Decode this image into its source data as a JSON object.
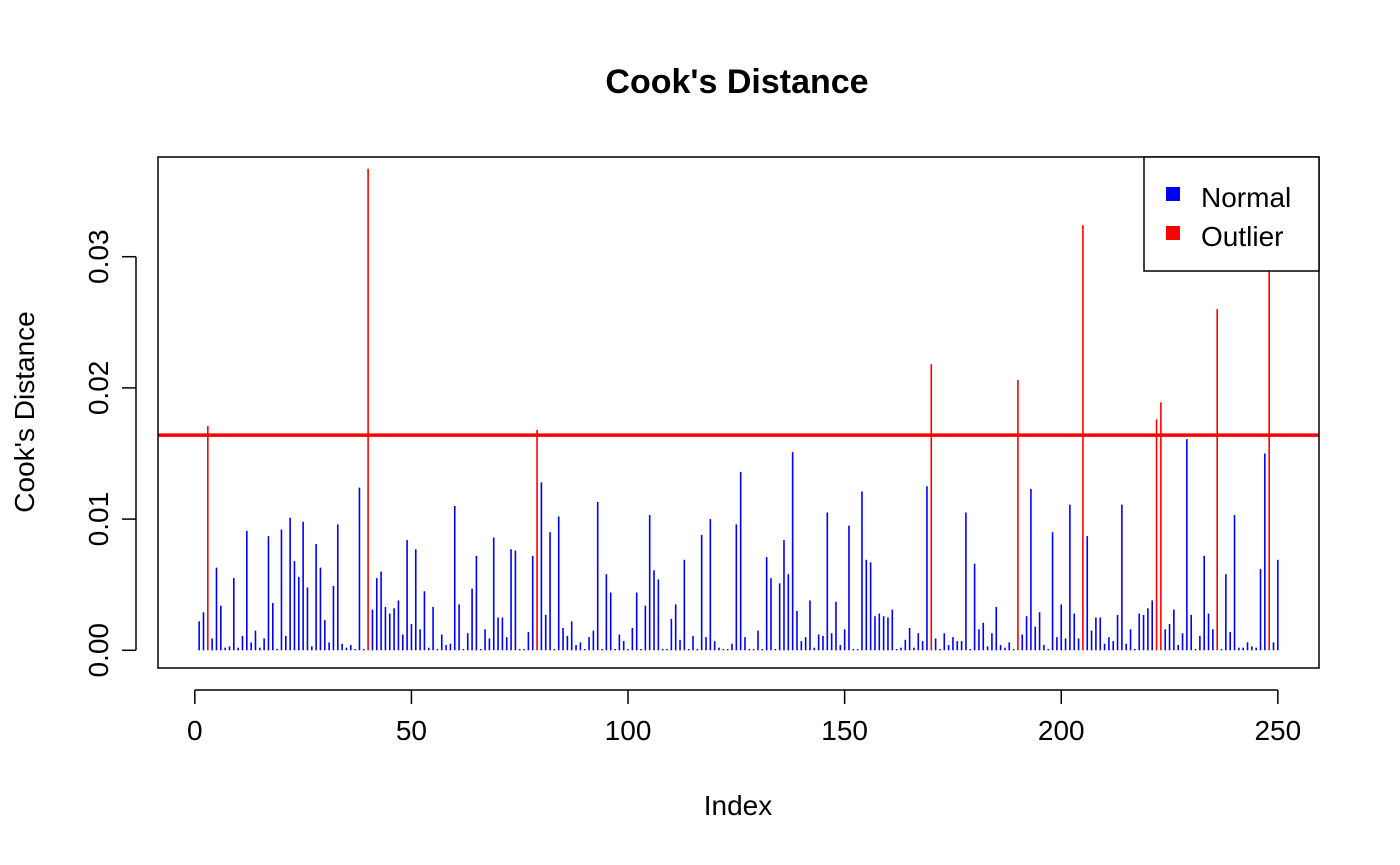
{
  "chart_data": {
    "type": "bar",
    "title": "Cook's Distance",
    "xlabel": "Index",
    "ylabel": "Cook's Distance",
    "xlim": [
      -8.5,
      259.5
    ],
    "ylim": [
      -0.00135,
      0.0376
    ],
    "x_ticks": [
      0,
      50,
      100,
      150,
      200,
      250
    ],
    "y_ticks": [
      0,
      0.01,
      0.02,
      0.03
    ],
    "y_tick_labels": [
      "0.00",
      "0.01",
      "0.02",
      "0.03"
    ],
    "threshold": 0.0164,
    "threshold_color": "#ff0000",
    "legend": {
      "placement": "top-right",
      "entries": [
        {
          "label": "Normal",
          "color": "#0000ff"
        },
        {
          "label": "Outlier",
          "color": "#ff0000"
        }
      ]
    },
    "series": [
      {
        "name": "Normal",
        "color": "#0000ff",
        "x": [
          1,
          2,
          4,
          5,
          6,
          7,
          8,
          9,
          10,
          11,
          12,
          13,
          14,
          15,
          16,
          17,
          18,
          19,
          20,
          21,
          22,
          23,
          24,
          25,
          26,
          27,
          28,
          29,
          30,
          31,
          32,
          33,
          34,
          35,
          36,
          37,
          38,
          39,
          41,
          42,
          43,
          44,
          45,
          46,
          47,
          48,
          49,
          50,
          51,
          52,
          53,
          54,
          55,
          56,
          57,
          58,
          59,
          60,
          61,
          62,
          63,
          64,
          65,
          66,
          67,
          68,
          69,
          70,
          71,
          72,
          73,
          74,
          75,
          76,
          77,
          78,
          80,
          81,
          82,
          83,
          84,
          85,
          86,
          87,
          88,
          89,
          90,
          91,
          92,
          93,
          94,
          95,
          96,
          97,
          98,
          99,
          100,
          101,
          102,
          103,
          104,
          105,
          106,
          107,
          108,
          109,
          110,
          111,
          112,
          113,
          114,
          115,
          116,
          117,
          118,
          119,
          120,
          121,
          122,
          123,
          124,
          125,
          126,
          127,
          128,
          129,
          130,
          131,
          132,
          133,
          134,
          135,
          136,
          137,
          138,
          139,
          140,
          141,
          142,
          143,
          144,
          145,
          146,
          147,
          148,
          149,
          150,
          151,
          152,
          153,
          154,
          155,
          156,
          157,
          158,
          159,
          160,
          161,
          162,
          163,
          164,
          165,
          166,
          167,
          168,
          169,
          171,
          172,
          173,
          174,
          175,
          176,
          177,
          178,
          179,
          180,
          181,
          182,
          183,
          184,
          185,
          186,
          187,
          188,
          189,
          191,
          192,
          193,
          194,
          195,
          196,
          197,
          198,
          199,
          200,
          201,
          202,
          203,
          204,
          206,
          207,
          208,
          209,
          210,
          211,
          212,
          213,
          214,
          215,
          216,
          217,
          218,
          219,
          220,
          221,
          224,
          225,
          226,
          227,
          228,
          229,
          230,
          231,
          232,
          233,
          234,
          235,
          237,
          238,
          239,
          240,
          241,
          242,
          243,
          244,
          245,
          246,
          247,
          249,
          250
        ],
        "values": [
          0.0022,
          0.0029,
          0.0009,
          0.0063,
          0.0034,
          0.0002,
          0.0003,
          0.0055,
          0.0002,
          0.0011,
          0.0091,
          0.0006,
          0.0015,
          0.0002,
          0.0009,
          0.0087,
          0.0036,
          0.0001,
          0.0092,
          0.0011,
          0.0101,
          0.0068,
          0.0056,
          0.0098,
          0.0048,
          0.0003,
          0.0081,
          0.0063,
          0.0023,
          0.0006,
          0.0049,
          0.0096,
          0.0005,
          0.0002,
          0.0004,
          0.0001,
          0.0124,
          0.0001,
          0.0031,
          0.0055,
          0.006,
          0.0033,
          0.0028,
          0.0032,
          0.0038,
          0.0012,
          0.0084,
          0.002,
          0.0077,
          0.0016,
          0.0045,
          0.0002,
          0.0033,
          0.0001,
          0.0012,
          0.0004,
          0.0005,
          0.011,
          0.0035,
          0.0001,
          0.0013,
          0.0047,
          0.0072,
          0.0001,
          0.0016,
          0.0009,
          0.0086,
          0.0025,
          0.0025,
          0.001,
          0.0077,
          0.0076,
          0.0001,
          0.0001,
          0.0014,
          0.0072,
          0.0128,
          0.0027,
          0.009,
          0.0001,
          0.0102,
          0.0017,
          0.0011,
          0.0022,
          0.0004,
          0.0006,
          0.0001,
          0.001,
          0.0015,
          0.0113,
          0.0001,
          0.0058,
          0.0044,
          0.0001,
          0.0012,
          0.0007,
          0.0001,
          0.0017,
          0.0044,
          0.0001,
          0.0034,
          0.0103,
          0.0061,
          0.0054,
          0.0001,
          0.0001,
          0.0024,
          0.0035,
          0.0008,
          0.0069,
          0.0001,
          0.0011,
          0.0001,
          0.0088,
          0.001,
          0.01,
          0.0007,
          0.0002,
          0.0001,
          0.0001,
          0.0005,
          0.0096,
          0.0136,
          0.001,
          0.0001,
          0.0001,
          0.0015,
          0.0001,
          0.0071,
          0.0055,
          0.0001,
          0.0051,
          0.0084,
          0.0058,
          0.0151,
          0.003,
          0.0007,
          0.001,
          0.0038,
          0.0002,
          0.0012,
          0.0011,
          0.0105,
          0.0013,
          0.0037,
          0.0004,
          0.0016,
          0.0095,
          0.0001,
          0.0001,
          0.0121,
          0.0069,
          0.0067,
          0.0026,
          0.0028,
          0.0026,
          0.0025,
          0.0031,
          0.0001,
          0.0002,
          0.0008,
          0.0017,
          0.0002,
          0.0013,
          0.0007,
          0.0125,
          0.0009,
          0.0001,
          0.0013,
          0.0004,
          0.001,
          0.0007,
          0.0007,
          0.0105,
          0.0001,
          0.0066,
          0.0016,
          0.0021,
          0.0003,
          0.0013,
          0.0033,
          0.0004,
          0.0002,
          0.0006,
          0.0001,
          0.0012,
          0.0026,
          0.0123,
          0.0018,
          0.0029,
          0.0004,
          0.0001,
          0.009,
          0.001,
          0.0035,
          0.0009,
          0.0111,
          0.0028,
          0.0009,
          0.0087,
          0.0015,
          0.0025,
          0.0025,
          0.0005,
          0.001,
          0.0007,
          0.0027,
          0.0111,
          0.0005,
          0.0016,
          0.0001,
          0.0028,
          0.0027,
          0.0032,
          0.0038,
          0.0016,
          0.002,
          0.0031,
          0.0004,
          0.0013,
          0.0161,
          0.0027,
          0.0001,
          0.0011,
          0.0072,
          0.0028,
          0.0016,
          0.0001,
          0.0058,
          0.0014,
          0.0103,
          0.0002,
          0.0002,
          0.0006,
          0.0003,
          0.0002,
          0.0062,
          0.015,
          0.0006,
          0.0069
        ]
      },
      {
        "name": "Outlier",
        "color": "#ff0000",
        "x": [
          3,
          40,
          79,
          170,
          190,
          205,
          222,
          223,
          236,
          248
        ],
        "values": [
          0.0171,
          0.0367,
          0.0168,
          0.0218,
          0.0206,
          0.0324,
          0.0176,
          0.0189,
          0.026,
          0.0294
        ]
      }
    ]
  }
}
